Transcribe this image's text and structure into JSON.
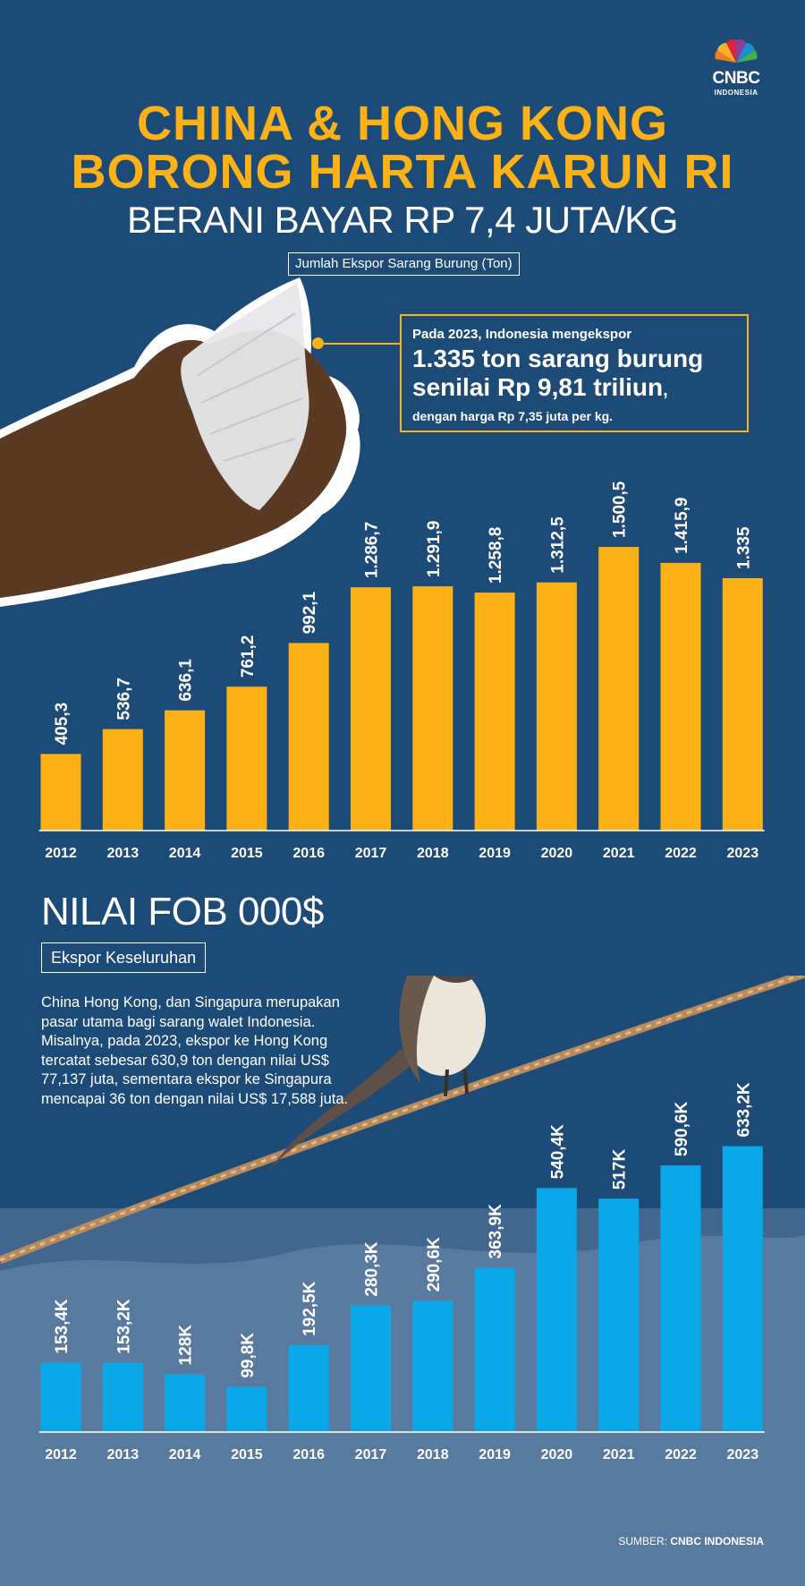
{
  "brand": {
    "logo_text": "CNBC",
    "logo_sub": "INDONESIA"
  },
  "header": {
    "title_line1": "CHINA & HONG KONG",
    "title_line2": "BORONG HARTA KARUN RI",
    "subtitle": "BERANI BAYAR RP 7,4 JUTA/KG",
    "chart1_label": "Jumlah Ekspor Sarang Burung (Ton)"
  },
  "callout": {
    "pre": "Pada 2023, Indonesia mengekspor",
    "big_line1": "1.335 ton sarang burung",
    "big_line2": "senilai Rp 9,81 triliun",
    "big_comma": ",",
    "post": "dengan harga Rp 7,35 juta per kg."
  },
  "section2": {
    "title": "NILAI FOB 000$",
    "label": "Ekspor Keseluruhan",
    "body": "China Hong Kong, dan Singapura merupakan pasar utama bagi sarang walet Indonesia. Misalnya, pada 2023, ekspor ke Hong Kong tercatat sebesar 630,9 ton dengan nilai US$ 77,137 juta, sementara ekspor ke Singapura mencapai 36 ton dengan nilai US$ 17,588 juta."
  },
  "source": {
    "prefix": "SUMBER: ",
    "brand": "CNBC INDONESIA"
  },
  "colors": {
    "background": "#1d4b78",
    "accent_yellow": "#fcb116",
    "accent_blue": "#0aa8e8"
  },
  "chart_data": [
    {
      "type": "bar",
      "title": "Jumlah Ekspor Sarang Burung (Ton)",
      "categories": [
        "2012",
        "2013",
        "2014",
        "2015",
        "2016",
        "2017",
        "2018",
        "2019",
        "2020",
        "2021",
        "2022",
        "2023"
      ],
      "values": [
        405.3,
        536.7,
        636.1,
        761.2,
        992.1,
        1286.7,
        1291.9,
        1258.8,
        1312.5,
        1500.5,
        1415.9,
        1335
      ],
      "value_labels": [
        "405,3",
        "536,7",
        "636,1",
        "761,2",
        "992,1",
        "1.286,7",
        "1.291,9",
        "1.258,8",
        "1.312,5",
        "1.500,5",
        "1.415,9",
        "1.335"
      ],
      "unit": "Ton",
      "bar_color": "#fcb116"
    },
    {
      "type": "bar",
      "title": "NILAI FOB 000$",
      "categories": [
        "2012",
        "2013",
        "2014",
        "2015",
        "2016",
        "2017",
        "2018",
        "2019",
        "2020",
        "2021",
        "2022",
        "2023"
      ],
      "values": [
        153.4,
        153.2,
        128,
        99.8,
        192.5,
        280.3,
        290.6,
        363.9,
        540.4,
        517,
        590.6,
        633.2
      ],
      "value_labels": [
        "153,4K",
        "153,2K",
        "128K",
        "99,8K",
        "192,5K",
        "280,3K",
        "290,6K",
        "363,9K",
        "540,4K",
        "517K",
        "590,6K",
        "633,2K"
      ],
      "unit": "000$",
      "bar_color": "#0aa8e8"
    }
  ]
}
